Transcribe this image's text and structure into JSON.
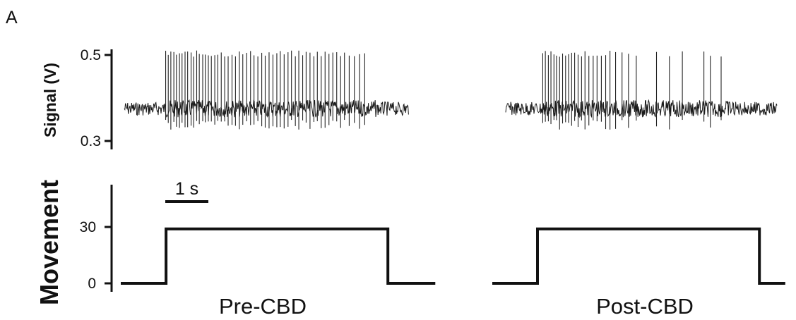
{
  "panel_label": "A",
  "chart_data": {
    "type": "line",
    "signal": {
      "ylabel": "Signal (V)",
      "yticks": [
        0.3,
        0.5
      ],
      "ylim": [
        0.3,
        0.52
      ],
      "baseline": 0.375,
      "noise_halfwidth": 0.016
    },
    "movement": {
      "ylabel": "Movement",
      "yticks": [
        0,
        30
      ],
      "ylim": [
        0,
        50
      ],
      "scale_bar": {
        "label": "1 s",
        "duration_s": 1
      }
    },
    "conditions": [
      {
        "name": "Pre-CBD",
        "trace_start_s": 0,
        "trace_end_s": 6.6,
        "burst_start_s": 0.95,
        "burst_end_s": 5.85,
        "spike_times_s": [
          0.96,
          1.02,
          1.08,
          1.15,
          1.21,
          1.28,
          1.34,
          1.41,
          1.47,
          1.55,
          1.61,
          1.68,
          1.74,
          1.82,
          1.88,
          1.95,
          2.02,
          2.1,
          2.17,
          2.25,
          2.33,
          2.41,
          2.5,
          2.58,
          2.67,
          2.75,
          2.84,
          2.93,
          3.01,
          3.1,
          3.19,
          3.27,
          3.36,
          3.45,
          3.54,
          3.62,
          3.71,
          3.8,
          3.88,
          3.97,
          4.05,
          4.14,
          4.22,
          4.31,
          4.4,
          4.48,
          4.57,
          4.66,
          4.75,
          4.84,
          4.93,
          5.02,
          5.11,
          5.22,
          5.34,
          5.46,
          5.58
        ],
        "movement_segments": [
          {
            "t": 0,
            "value": 0
          },
          {
            "t": 1.05,
            "value": 0
          },
          {
            "t": 1.05,
            "value": 29
          },
          {
            "t": 6.2,
            "value": 29
          },
          {
            "t": 6.2,
            "value": 0
          },
          {
            "t": 7.3,
            "value": 0
          }
        ]
      },
      {
        "name": "Post-CBD",
        "trace_start_s": 0,
        "trace_end_s": 6.3,
        "burst_start_s": 0.85,
        "burst_end_s": 5.3,
        "spike_times_s": [
          0.86,
          0.92,
          0.99,
          1.05,
          1.12,
          1.18,
          1.25,
          1.32,
          1.39,
          1.46,
          1.53,
          1.6,
          1.68,
          1.76,
          1.84,
          1.93,
          2.03,
          2.12,
          2.22,
          2.32,
          2.42,
          2.55,
          2.7,
          2.85,
          3.03,
          3.5,
          3.8,
          4.1,
          4.6,
          4.75,
          5.0
        ],
        "movement_segments": [
          {
            "t": 0,
            "value": 0
          },
          {
            "t": 1.05,
            "value": 0
          },
          {
            "t": 1.05,
            "value": 29
          },
          {
            "t": 6.2,
            "value": 29
          },
          {
            "t": 6.2,
            "value": 0
          },
          {
            "t": 6.8,
            "value": 0
          }
        ]
      }
    ]
  }
}
